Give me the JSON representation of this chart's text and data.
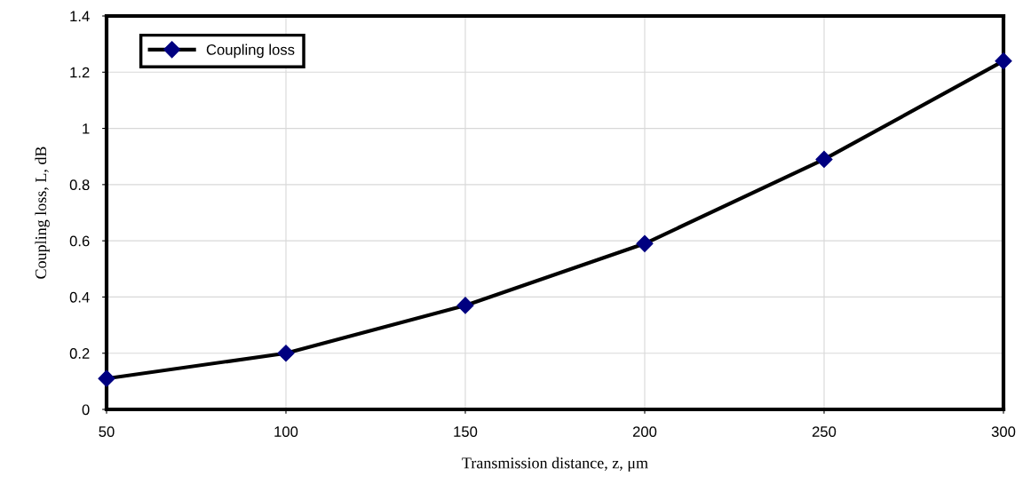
{
  "chart_data": {
    "type": "line",
    "xlabel": "Transmission distance, z, μm",
    "ylabel": "Coupling loss, L, dB",
    "x": [
      50,
      100,
      150,
      200,
      250,
      300
    ],
    "series": [
      {
        "name": "Coupling loss",
        "color": "#000080",
        "values": [
          0.11,
          0.2,
          0.37,
          0.59,
          0.89,
          1.24
        ]
      }
    ],
    "xlim": [
      50,
      300
    ],
    "xticks": [
      50,
      100,
      150,
      200,
      250,
      300
    ],
    "ylim": [
      0,
      1.4
    ],
    "yticks": [
      0,
      0.2,
      0.4,
      0.6,
      0.8,
      1,
      1.2,
      1.4
    ],
    "grid": true,
    "legend": "top left",
    "marker": "diamond",
    "line_style": "solid"
  }
}
